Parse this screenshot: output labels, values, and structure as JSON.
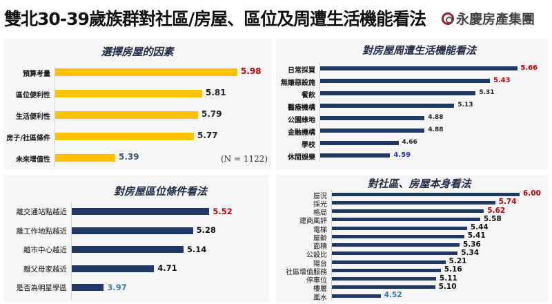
{
  "header": {
    "title": "雙北30-39歲族群對社區/房屋、區位及周遭生活機能看法",
    "logo_text": "永慶房產集團"
  },
  "chart_data": [
    {
      "type": "bar",
      "orientation": "horizontal",
      "title": "選擇房屋的因素",
      "categories": [
        "預算考量",
        "區位便利性",
        "生活便利性",
        "房子/社區條件",
        "未來增值性"
      ],
      "values": [
        5.98,
        5.81,
        5.79,
        5.77,
        5.39
      ],
      "value_labels": [
        "5.98",
        "5.81",
        "5.79",
        "5.77",
        "5.39"
      ],
      "value_label_colors": [
        "#C00000",
        "#222222",
        "#222222",
        "#222222",
        "#3B5A8A"
      ],
      "bar_color": "#FFC000",
      "note": "(N = 1122)",
      "xlim": [
        5.1,
        6.2
      ],
      "grid": false
    },
    {
      "type": "bar",
      "orientation": "horizontal",
      "title": "對房屋周遭生活機能看法",
      "categories": [
        "日常採買",
        "無嫌惡設施",
        "餐飲",
        "醫療機構",
        "公園綠地",
        "金融機構",
        "學校",
        "休閒娛樂"
      ],
      "values": [
        5.66,
        5.43,
        5.31,
        5.13,
        4.88,
        4.88,
        4.66,
        4.59
      ],
      "value_labels": [
        "5.66",
        "5.43",
        "5.31",
        "5.13",
        "4.88",
        "4.88",
        "4.66",
        "4.59"
      ],
      "value_label_colors": [
        "#C00000",
        "#C00000",
        "#222222",
        "#222222",
        "#222222",
        "#222222",
        "#222222",
        "#2233CC"
      ],
      "bar_color": "#1F3864",
      "xlim": [
        4.0,
        6.2
      ],
      "grid": false
    },
    {
      "type": "bar",
      "orientation": "horizontal",
      "title": "對房屋區位條件看法",
      "categories": [
        "離交通站點越近",
        "離工作地點越近",
        "離市中心越近",
        "離父母家越近",
        "是否為明星學區"
      ],
      "values": [
        5.52,
        5.28,
        5.14,
        4.71,
        3.97
      ],
      "value_labels": [
        "5.52",
        "5.28",
        "5.14",
        "4.71",
        "3.97"
      ],
      "value_label_colors": [
        "#C00000",
        "#111111",
        "#111111",
        "#111111",
        "#3A7A9A"
      ],
      "bar_color": "#1F3864",
      "xlim": [
        3.5,
        6.2
      ],
      "grid": false
    },
    {
      "type": "bar",
      "orientation": "horizontal",
      "title": "對社區、房屋本身看法",
      "categories": [
        "屋況",
        "採光",
        "格局",
        "建商風評",
        "電梯",
        "屋齡",
        "面積",
        "公設比",
        "陽台",
        "社區增值服務",
        "停車位",
        "樓層",
        "風水"
      ],
      "values": [
        6.0,
        5.74,
        5.62,
        5.58,
        5.44,
        5.41,
        5.36,
        5.34,
        5.21,
        5.16,
        5.11,
        5.1,
        4.52
      ],
      "value_labels": [
        "6.00",
        "5.74",
        "5.62",
        "5.58",
        "5.44",
        "5.41",
        "5.36",
        "5.34",
        "5.21",
        "5.16",
        "5.11",
        "5.10",
        "4.52"
      ],
      "value_label_colors": [
        "#C00000",
        "#C00000",
        "#C00000",
        "#111111",
        "#111111",
        "#111111",
        "#111111",
        "#111111",
        "#111111",
        "#111111",
        "#111111",
        "#111111",
        "#2E75B6"
      ],
      "bar_color": "#1F3864",
      "xlim": [
        4.0,
        6.3
      ],
      "grid": false
    }
  ]
}
